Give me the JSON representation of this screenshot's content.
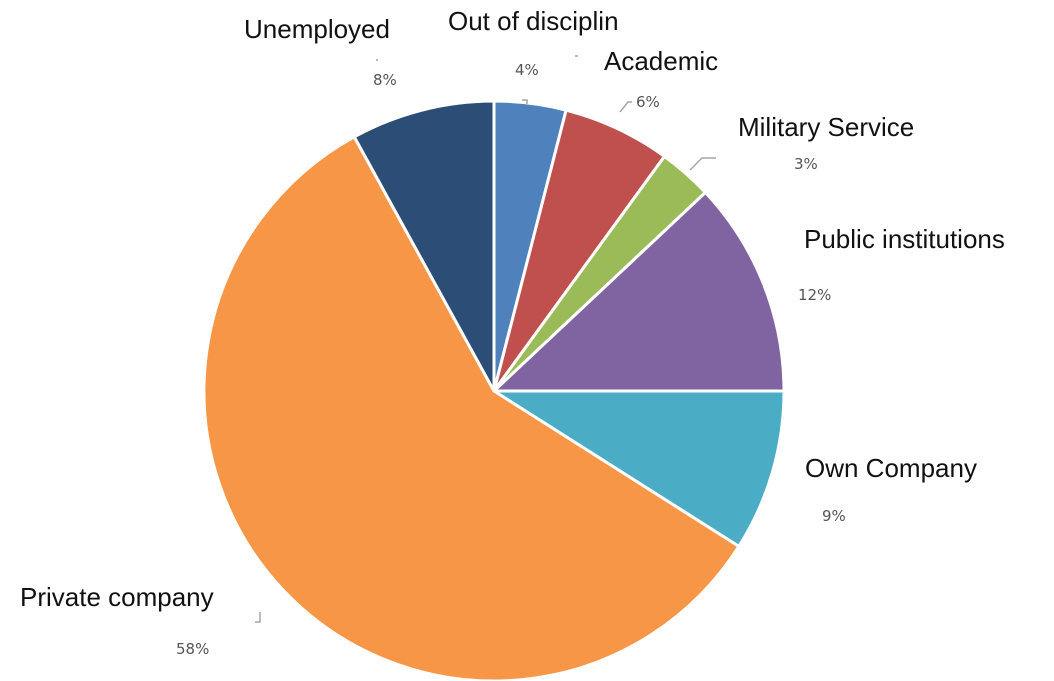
{
  "chart_data": {
    "type": "pie",
    "categories": [
      "Out of disciplin",
      "Academic",
      "Military Service",
      "Public institutions",
      "Own Company",
      "Private company",
      "Unemployed"
    ],
    "values": [
      4,
      6,
      3,
      12,
      9,
      58,
      8
    ],
    "value_labels": [
      "4%",
      "6%",
      "3%",
      "12%",
      "9%",
      "58%",
      "8%"
    ],
    "colors": [
      "#4f81bd",
      "#c0504d",
      "#9bbb59",
      "#8064a2",
      "#4bacc6",
      "#f79646",
      "#2c4d75"
    ],
    "start": "12 o'clock",
    "direction": "clockwise",
    "legend": "none"
  }
}
